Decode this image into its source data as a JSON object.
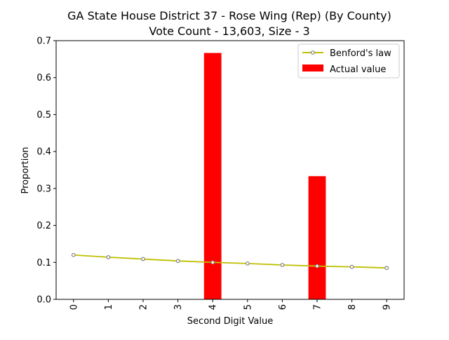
{
  "chart_data": {
    "type": "bar",
    "title": "GA State House District 37 - Rose Wing (Rep) (By County)",
    "subtitle": "Vote Count - 13,603, Size - 3",
    "xlabel": "Second Digit Value",
    "ylabel": "Proportion",
    "categories": [
      "0",
      "1",
      "2",
      "3",
      "4",
      "5",
      "6",
      "7",
      "8",
      "9"
    ],
    "ylim": [
      0,
      0.7
    ],
    "yticks": [
      "0.0",
      "0.1",
      "0.2",
      "0.3",
      "0.4",
      "0.5",
      "0.6",
      "0.7"
    ],
    "grid": false,
    "legend_position": "top-right",
    "series": [
      {
        "name": "Benford's law",
        "kind": "line",
        "color": "#bfbf00",
        "marker_color": "#808080",
        "values": [
          0.12,
          0.114,
          0.109,
          0.104,
          0.1,
          0.097,
          0.093,
          0.09,
          0.088,
          0.085
        ]
      },
      {
        "name": "Actual value",
        "kind": "bar",
        "color": "#ff0000",
        "values": [
          0,
          0,
          0,
          0,
          0.6667,
          0,
          0,
          0.3333,
          0,
          0
        ]
      }
    ]
  }
}
